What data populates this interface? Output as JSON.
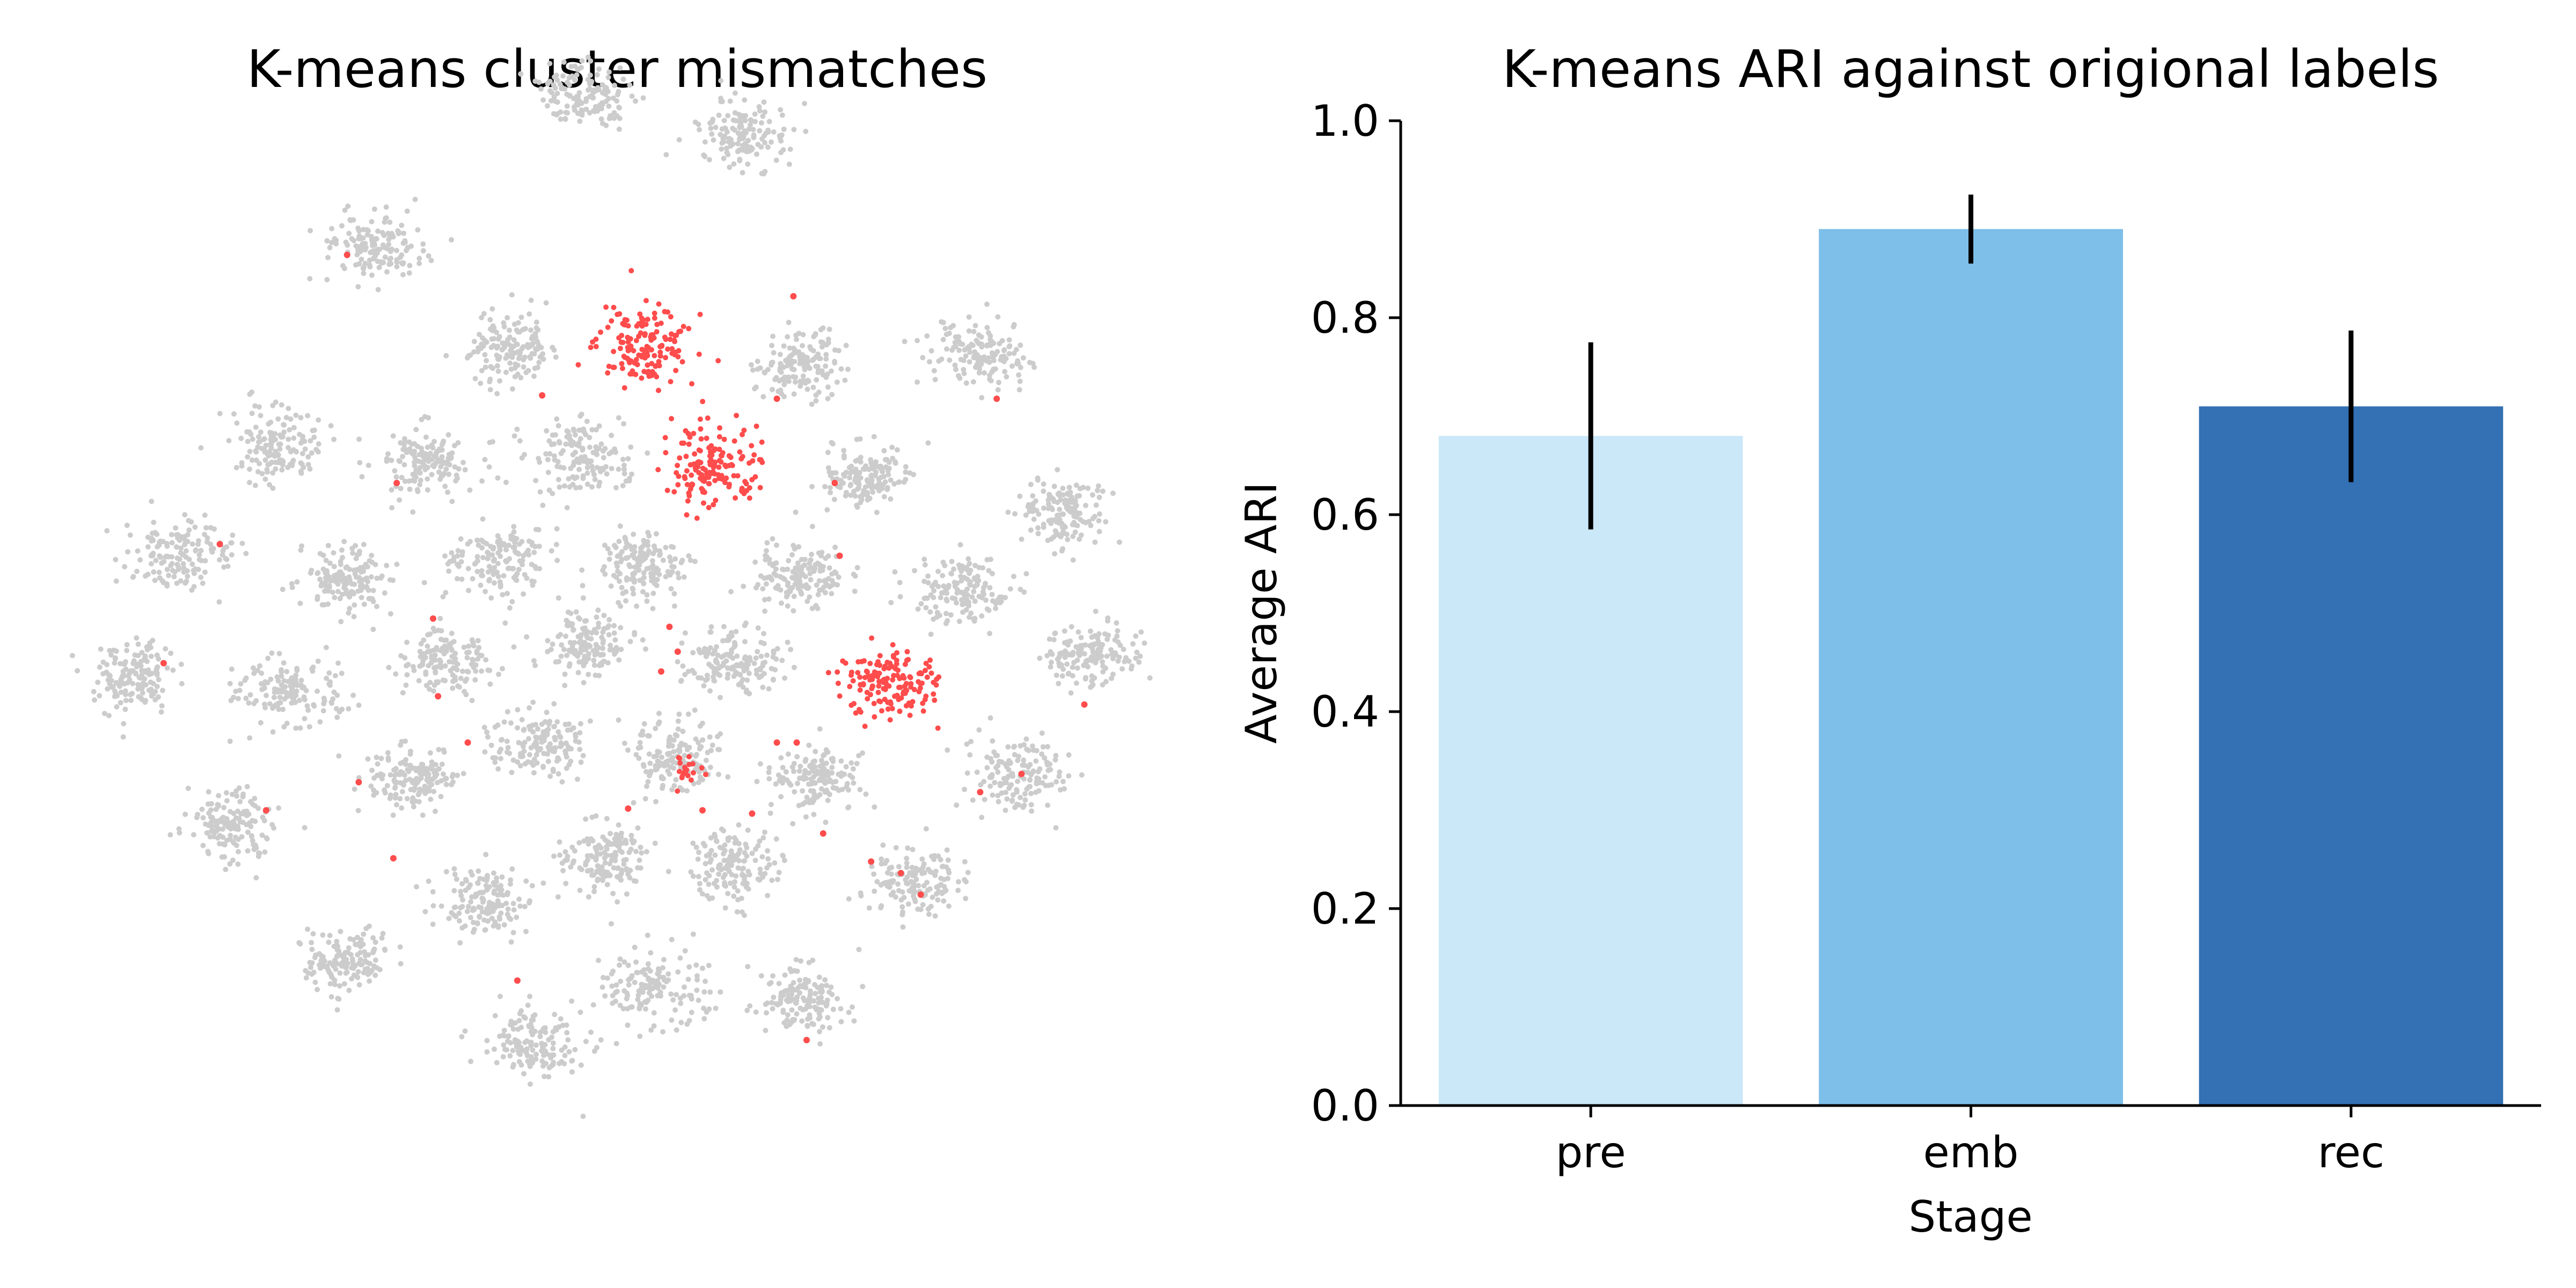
{
  "chart_data": [
    {
      "type": "scatter",
      "title": "K-means cluster mismatches",
      "xlabel": "",
      "ylabel": "",
      "axes_visible": false,
      "legend": "none",
      "colors": {
        "matched": "#cccccc",
        "mismatched": "#ff4c4c"
      },
      "series": [
        {
          "name": "clusters",
          "note": "t-SNE style embedding, cluster centres in embedding units (x right, y up); mismatched=true means the whole cluster was mis-assigned",
          "clusters": [
            {
              "x": 353,
              "y": 722,
              "mismatched": false
            },
            {
              "x": 450,
              "y": 697,
              "mismatched": false
            },
            {
              "x": 225,
              "y": 630,
              "mismatched": false
            },
            {
              "x": 390,
              "y": 570,
              "mismatched": true
            },
            {
              "x": 310,
              "y": 568,
              "mismatched": false
            },
            {
              "x": 483,
              "y": 560,
              "mismatched": false
            },
            {
              "x": 593,
              "y": 565,
              "mismatched": false
            },
            {
              "x": 168,
              "y": 510,
              "mismatched": false
            },
            {
              "x": 256,
              "y": 500,
              "mismatched": false
            },
            {
              "x": 350,
              "y": 502,
              "mismatched": false
            },
            {
              "x": 430,
              "y": 498,
              "mismatched": true
            },
            {
              "x": 525,
              "y": 490,
              "mismatched": false
            },
            {
              "x": 645,
              "y": 470,
              "mismatched": false
            },
            {
              "x": 108,
              "y": 444,
              "mismatched": false
            },
            {
              "x": 210,
              "y": 430,
              "mismatched": false
            },
            {
              "x": 300,
              "y": 441,
              "mismatched": false
            },
            {
              "x": 390,
              "y": 437,
              "mismatched": false
            },
            {
              "x": 483,
              "y": 430,
              "mismatched": false
            },
            {
              "x": 580,
              "y": 420,
              "mismatched": false
            },
            {
              "x": 80,
              "y": 370,
              "mismatched": false
            },
            {
              "x": 175,
              "y": 361,
              "mismatched": false
            },
            {
              "x": 270,
              "y": 380,
              "mismatched": false
            },
            {
              "x": 355,
              "y": 390,
              "mismatched": false
            },
            {
              "x": 443,
              "y": 380,
              "mismatched": false
            },
            {
              "x": 540,
              "y": 365,
              "mismatched": true
            },
            {
              "x": 660,
              "y": 382,
              "mismatched": false
            },
            {
              "x": 327,
              "y": 330,
              "mismatched": false
            },
            {
              "x": 405,
              "y": 323,
              "mismatched": false
            },
            {
              "x": 250,
              "y": 307,
              "mismatched": false
            },
            {
              "x": 495,
              "y": 307,
              "mismatched": false
            },
            {
              "x": 615,
              "y": 310,
              "mismatched": false
            },
            {
              "x": 140,
              "y": 282,
              "mismatched": false
            },
            {
              "x": 365,
              "y": 260,
              "mismatched": false
            },
            {
              "x": 445,
              "y": 255,
              "mismatched": false
            },
            {
              "x": 552,
              "y": 245,
              "mismatched": false
            },
            {
              "x": 293,
              "y": 233,
              "mismatched": false
            },
            {
              "x": 210,
              "y": 200,
              "mismatched": false
            },
            {
              "x": 397,
              "y": 182,
              "mismatched": false
            },
            {
              "x": 485,
              "y": 175,
              "mismatched": false
            },
            {
              "x": 323,
              "y": 148,
              "mismatched": false
            }
          ],
          "partial_mismatch_cluster": {
            "x": 408,
            "y": 322,
            "count": 20
          },
          "stray_mismatch_points": [
            [
              210,
              625
            ],
            [
              328,
              540
            ],
            [
              480,
              600
            ],
            [
              470,
              538
            ],
            [
              603,
              538
            ],
            [
              240,
              487
            ],
            [
              505,
              487
            ],
            [
              133,
              450
            ],
            [
              508,
              443
            ],
            [
              405,
              400
            ],
            [
              262,
              405
            ],
            [
              410,
              385
            ],
            [
              400,
              373
            ],
            [
              265,
              358
            ],
            [
              283,
              330
            ],
            [
              470,
              330
            ],
            [
              482,
              330
            ],
            [
              217,
              306
            ],
            [
              593,
              300
            ],
            [
              618,
              311
            ],
            [
              380,
              290
            ],
            [
              425,
              289
            ],
            [
              455,
              287
            ],
            [
              498,
              275
            ],
            [
              545,
              251
            ],
            [
              527,
              258
            ],
            [
              557,
              238
            ],
            [
              313,
              186
            ],
            [
              488,
              150
            ],
            [
              99,
              378
            ],
            [
              656,
              353
            ],
            [
              161,
              289
            ],
            [
              238,
              260
            ]
          ]
        }
      ]
    },
    {
      "type": "bar",
      "title": "K-means ARI against origional labels",
      "xlabel": "Stage",
      "ylabel": "Average ARI",
      "categories": [
        "pre",
        "emb",
        "rec"
      ],
      "values": [
        0.68,
        0.89,
        0.71
      ],
      "errors": [
        0.095,
        0.035,
        0.077
      ],
      "colors": [
        "#cbe8f8",
        "#7dbfe8",
        "#3370b4"
      ],
      "ylim": [
        0.0,
        1.0
      ],
      "yticks": [
        "0.0",
        "0.2",
        "0.4",
        "0.6",
        "0.8",
        "1.0"
      ],
      "grid": false,
      "legend": "none"
    }
  ]
}
